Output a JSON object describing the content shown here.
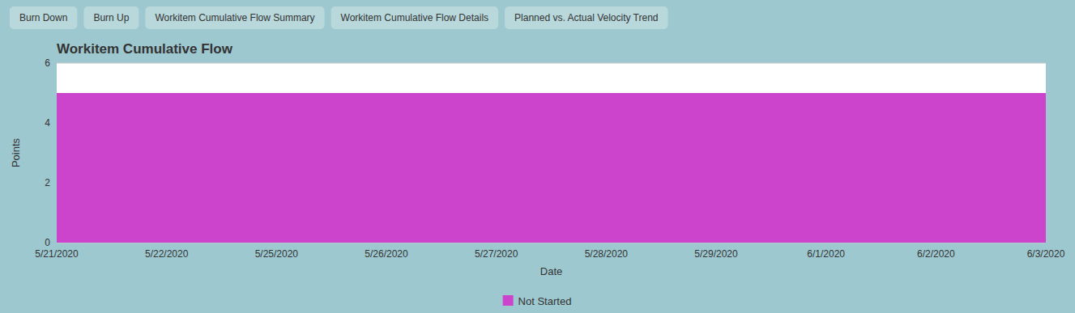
{
  "chart_data": {
    "type": "area",
    "title": "Workitem Cumulative Flow",
    "x_label": "Date",
    "y_label": "Points",
    "annotations": [
      "Burn Down",
      "Burn Up",
      "Workitem Cumulative Flow Summary",
      "Workitem Cumulative Flow Details",
      "Planned vs. Actual Velocity Trend"
    ],
    "categories": [
      "5/21/2020",
      "5/22/2020",
      "5/25/2020",
      "5/26/2020",
      "5/27/2020",
      "5/28/2020",
      "5/29/2020",
      "6/1/2020",
      "6/2/2020",
      "6/3/2020"
    ],
    "series": [
      {
        "name": "Not Started",
        "color": "#CC44CC",
        "values": [
          5,
          5,
          5,
          5,
          5,
          5,
          5,
          5,
          5,
          5
        ]
      }
    ],
    "ylim": [
      0,
      6
    ],
    "yticks": [
      0,
      2,
      4,
      6
    ],
    "grid": true,
    "legend": "bottom"
  }
}
